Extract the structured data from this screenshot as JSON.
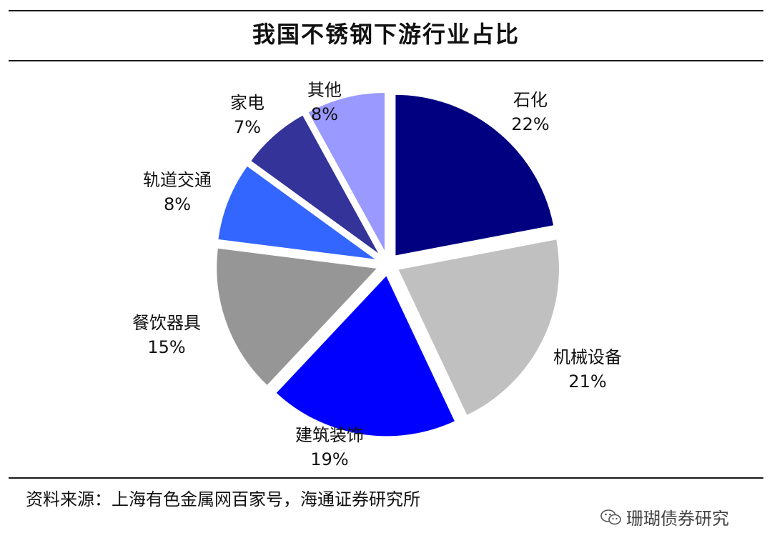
{
  "chart_data": {
    "type": "pie",
    "title": "我国不锈钢下游行业占比",
    "slices": [
      {
        "name": "石化",
        "label": "22%",
        "value": 22,
        "color": "#000080"
      },
      {
        "name": "机械设备",
        "label": "21%",
        "value": 21,
        "color": "#c0c0c0"
      },
      {
        "name": "建筑装饰",
        "label": "19%",
        "value": 19,
        "color": "#0000ff"
      },
      {
        "name": "餐饮器具",
        "label": "15%",
        "value": 15,
        "color": "#969696"
      },
      {
        "name": "轨道交通",
        "label": "8%",
        "value": 8,
        "color": "#3366ff"
      },
      {
        "name": "家电",
        "label": "7%",
        "value": 7,
        "color": "#333399"
      },
      {
        "name": "其他",
        "label": "8%",
        "value": 8,
        "color": "#9999ff"
      }
    ]
  },
  "footer": {
    "source": "资料来源：上海有色金属网百家号，海通证券研究所",
    "watermark": "珊瑚债券研究",
    "watermark_icon": "wechat-icon"
  }
}
